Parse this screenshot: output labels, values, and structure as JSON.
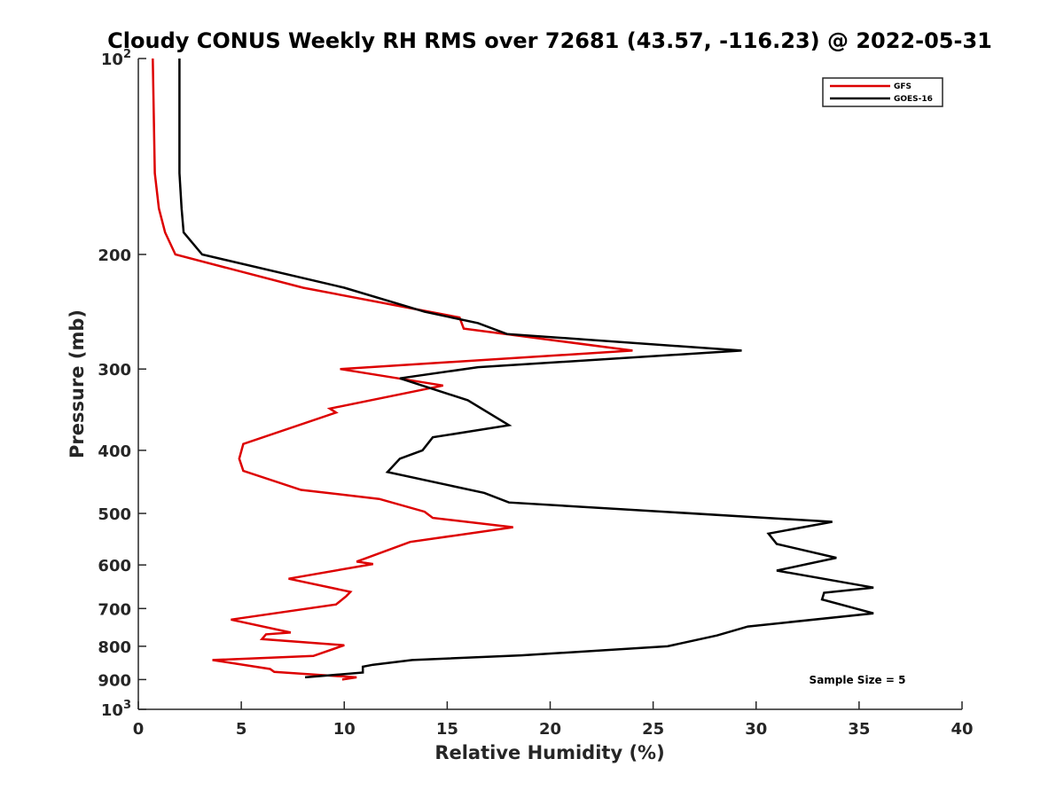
{
  "chart_data": {
    "type": "line",
    "title": "Cloudy CONUS Weekly RH RMS over 72681 (43.57, -116.23) @ 2022-05-31",
    "xlabel": "Relative Humidity (%)",
    "ylabel": "Pressure (mb)",
    "xlim": [
      0,
      40
    ],
    "ylim": [
      100,
      1000
    ],
    "y_scale": "log",
    "y_reversed": true,
    "x_ticks": [
      "0",
      "5",
      "10",
      "15",
      "20",
      "25",
      "30",
      "35",
      "40"
    ],
    "y_ticks": [
      {
        "value": 100,
        "base": "10",
        "exp": "2"
      },
      {
        "value": 200,
        "label": "200"
      },
      {
        "value": 300,
        "label": "300"
      },
      {
        "value": 400,
        "label": "400"
      },
      {
        "value": 500,
        "label": "500"
      },
      {
        "value": 600,
        "label": "600"
      },
      {
        "value": 700,
        "label": "700"
      },
      {
        "value": 800,
        "label": "800"
      },
      {
        "value": 900,
        "label": "900"
      },
      {
        "value": 1000,
        "base": "10",
        "exp": "3"
      }
    ],
    "grid": false,
    "legend_position": "top-right",
    "annotation": "Sample Size = 5",
    "series": [
      {
        "name": "GFS",
        "color": "#dd0000",
        "points": [
          [
            0.7,
            100
          ],
          [
            0.8,
            150
          ],
          [
            1.0,
            170
          ],
          [
            1.3,
            185
          ],
          [
            1.8,
            200
          ],
          [
            8.0,
            225
          ],
          [
            15.6,
            250
          ],
          [
            15.8,
            260
          ],
          [
            24.0,
            281
          ],
          [
            9.8,
            300
          ],
          [
            14.8,
            318
          ],
          [
            9.3,
            345
          ],
          [
            9.6,
            350
          ],
          [
            5.1,
            391
          ],
          [
            4.9,
            412
          ],
          [
            5.1,
            430
          ],
          [
            7.9,
            460
          ],
          [
            11.7,
            475
          ],
          [
            13.9,
            497
          ],
          [
            14.3,
            508
          ],
          [
            18.2,
            525
          ],
          [
            13.2,
            553
          ],
          [
            10.6,
            593
          ],
          [
            11.4,
            598
          ],
          [
            7.3,
            630
          ],
          [
            10.3,
            660
          ],
          [
            10.1,
            670
          ],
          [
            9.6,
            690
          ],
          [
            4.5,
            728
          ],
          [
            7.4,
            762
          ],
          [
            6.2,
            767
          ],
          [
            6.0,
            780
          ],
          [
            10.0,
            797
          ],
          [
            8.5,
            828
          ],
          [
            3.6,
            840
          ],
          [
            6.4,
            867
          ],
          [
            6.6,
            876
          ],
          [
            10.6,
            893
          ],
          [
            9.9,
            900
          ]
        ]
      },
      {
        "name": "GOES-16",
        "color": "#000000",
        "points": [
          [
            2.0,
            100
          ],
          [
            2.0,
            150
          ],
          [
            2.1,
            170
          ],
          [
            2.2,
            185
          ],
          [
            3.1,
            200
          ],
          [
            10.0,
            225
          ],
          [
            13.9,
            245
          ],
          [
            16.5,
            255
          ],
          [
            17.9,
            265
          ],
          [
            29.3,
            281
          ],
          [
            16.5,
            298
          ],
          [
            12.7,
            310
          ],
          [
            16.0,
            335
          ],
          [
            18.0,
            366
          ],
          [
            14.3,
            382
          ],
          [
            13.8,
            400
          ],
          [
            12.7,
            412
          ],
          [
            12.1,
            432
          ],
          [
            16.8,
            465
          ],
          [
            18.0,
            481
          ],
          [
            33.7,
            515
          ],
          [
            30.6,
            537
          ],
          [
            31.0,
            557
          ],
          [
            33.9,
            585
          ],
          [
            31.0,
            612
          ],
          [
            35.7,
            650
          ],
          [
            33.3,
            662
          ],
          [
            33.2,
            678
          ],
          [
            35.7,
            712
          ],
          [
            29.6,
            746
          ],
          [
            28.1,
            770
          ],
          [
            25.7,
            800
          ],
          [
            18.6,
            826
          ],
          [
            13.3,
            840
          ],
          [
            11.4,
            854
          ],
          [
            10.9,
            860
          ],
          [
            10.9,
            878
          ],
          [
            8.1,
            893
          ]
        ]
      }
    ]
  }
}
